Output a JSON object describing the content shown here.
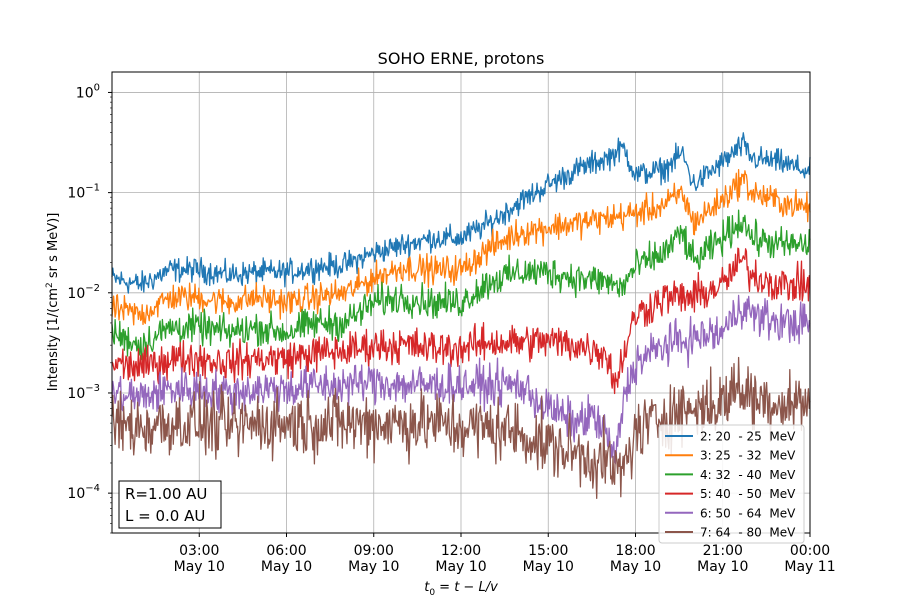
{
  "chart_data": {
    "type": "line",
    "title": "SOHO ERNE, protons",
    "xlabel": "t0 = t − L/v",
    "ylabel": "Intensity [1/(cm² sr s MeV)]",
    "ylabel_prefix": "Intensity [1/(cm",
    "ylabel_sup": "2",
    "ylabel_suffix": " sr s MeV)]",
    "xlabel_main": "t",
    "xlabel_sub": "0",
    "xlabel_rest": " = t − L/v",
    "yscale": "log",
    "ylim": [
      4e-05,
      1.6
    ],
    "xlim_hours": [
      0,
      24
    ],
    "grid": true,
    "legend_position": "bottom-right",
    "x_ticks": [
      {
        "hour": 3,
        "line1": "03:00",
        "line2": "May 10"
      },
      {
        "hour": 6,
        "line1": "06:00",
        "line2": "May 10"
      },
      {
        "hour": 9,
        "line1": "09:00",
        "line2": "May 10"
      },
      {
        "hour": 12,
        "line1": "12:00",
        "line2": "May 10"
      },
      {
        "hour": 15,
        "line1": "15:00",
        "line2": "May 10"
      },
      {
        "hour": 18,
        "line1": "18:00",
        "line2": "May 10"
      },
      {
        "hour": 21,
        "line1": "21:00",
        "line2": "May 10"
      },
      {
        "hour": 24,
        "line1": "00:00",
        "line2": "May 11"
      }
    ],
    "y_ticks": [
      {
        "exp": -4,
        "label": "10",
        "sup": "−4"
      },
      {
        "exp": -3,
        "label": "10",
        "sup": "−3"
      },
      {
        "exp": -2,
        "label": "10",
        "sup": "−2"
      },
      {
        "exp": -1,
        "label": "10",
        "sup": "−1"
      },
      {
        "exp": 0,
        "label": "10",
        "sup": "0"
      }
    ],
    "annotation": [
      "R=1.00 AU",
      "L = 0.0 AU"
    ],
    "series": [
      {
        "name": "2: 20  - 25  MeV",
        "color": "#1f77b4",
        "noise": 0.06,
        "hours": [
          0,
          1,
          2,
          3,
          4,
          5,
          6,
          7,
          8,
          9,
          10,
          11,
          12,
          13,
          14,
          15,
          16,
          17,
          17.6,
          18,
          19,
          19.6,
          20,
          21,
          21.7,
          22,
          23,
          24
        ],
        "values": [
          0.014,
          0.012,
          0.017,
          0.017,
          0.015,
          0.016,
          0.016,
          0.018,
          0.019,
          0.025,
          0.03,
          0.035,
          0.035,
          0.05,
          0.08,
          0.12,
          0.17,
          0.22,
          0.28,
          0.15,
          0.17,
          0.25,
          0.12,
          0.2,
          0.3,
          0.22,
          0.2,
          0.16
        ]
      },
      {
        "name": "3: 25  - 32  MeV",
        "color": "#ff7f0e",
        "noise": 0.07,
        "hours": [
          0,
          1,
          2,
          3,
          4,
          5,
          6,
          7,
          8,
          9,
          10,
          11,
          12,
          13,
          14,
          15,
          16,
          17,
          18,
          19,
          19.6,
          20,
          21,
          21.7,
          22,
          23,
          24
        ],
        "values": [
          0.007,
          0.006,
          0.009,
          0.009,
          0.008,
          0.009,
          0.008,
          0.009,
          0.01,
          0.014,
          0.018,
          0.017,
          0.017,
          0.028,
          0.04,
          0.045,
          0.05,
          0.055,
          0.062,
          0.075,
          0.1,
          0.05,
          0.085,
          0.14,
          0.1,
          0.08,
          0.07
        ]
      },
      {
        "name": "4: 32  - 40  MeV",
        "color": "#2ca02c",
        "noise": 0.08,
        "hours": [
          0,
          1,
          2,
          3,
          4,
          5,
          6,
          7,
          8,
          9,
          10,
          11,
          12,
          13,
          14,
          15,
          16,
          17,
          17.5,
          18,
          19,
          19.6,
          20,
          21,
          21.7,
          22,
          23,
          24
        ],
        "values": [
          0.004,
          0.003,
          0.0045,
          0.0045,
          0.004,
          0.0045,
          0.004,
          0.005,
          0.005,
          0.008,
          0.009,
          0.008,
          0.008,
          0.013,
          0.016,
          0.016,
          0.014,
          0.013,
          0.011,
          0.018,
          0.025,
          0.04,
          0.02,
          0.035,
          0.055,
          0.035,
          0.03,
          0.03
        ]
      },
      {
        "name": "5: 40  - 50  MeV",
        "color": "#d62728",
        "noise": 0.09,
        "hours": [
          0,
          1,
          2,
          3,
          4,
          5,
          6,
          7,
          8,
          9,
          10,
          11,
          12,
          13,
          14,
          15,
          16,
          17,
          17.3,
          17.6,
          18,
          19,
          20,
          21,
          21.7,
          22,
          23,
          24
        ],
        "values": [
          0.002,
          0.0018,
          0.0022,
          0.0022,
          0.002,
          0.0022,
          0.0022,
          0.0025,
          0.0026,
          0.003,
          0.003,
          0.0028,
          0.0028,
          0.0032,
          0.0032,
          0.0033,
          0.003,
          0.0025,
          0.0012,
          0.0025,
          0.006,
          0.009,
          0.009,
          0.012,
          0.022,
          0.015,
          0.012,
          0.012
        ]
      },
      {
        "name": "6: 50  - 64  MeV",
        "color": "#9467bd",
        "noise": 0.1,
        "hours": [
          0,
          1,
          2,
          3,
          4,
          5,
          6,
          7,
          8,
          9,
          10,
          11,
          12,
          13,
          14,
          15,
          16,
          16.5,
          17,
          17.3,
          17.6,
          18,
          19,
          20,
          21,
          21.7,
          22,
          23,
          24
        ],
        "values": [
          0.001,
          0.0009,
          0.0011,
          0.0011,
          0.001,
          0.0011,
          0.0011,
          0.0012,
          0.0012,
          0.0013,
          0.0012,
          0.0012,
          0.0012,
          0.0012,
          0.0012,
          0.0007,
          0.0005,
          0.0006,
          0.0004,
          0.0002,
          0.0009,
          0.002,
          0.003,
          0.0035,
          0.004,
          0.008,
          0.006,
          0.005,
          0.005
        ]
      },
      {
        "name": "7: 64  - 80  MeV",
        "color": "#8c564b",
        "noise": 0.16,
        "hours": [
          0,
          1,
          2,
          3,
          4,
          5,
          6,
          7,
          8,
          9,
          10,
          11,
          12,
          13,
          14,
          15,
          16,
          17,
          17.5,
          18,
          19,
          20,
          21,
          21.5,
          22,
          23,
          24
        ],
        "values": [
          0.0005,
          0.00045,
          0.0005,
          0.0005,
          0.00045,
          0.0005,
          0.0005,
          0.0005,
          0.0005,
          0.0005,
          0.0005,
          0.0005,
          0.00045,
          0.00045,
          0.0004,
          0.0003,
          0.00025,
          0.0002,
          0.00015,
          0.0004,
          0.0006,
          0.0007,
          0.0008,
          0.0012,
          0.0009,
          0.0008,
          0.0008
        ]
      }
    ]
  }
}
